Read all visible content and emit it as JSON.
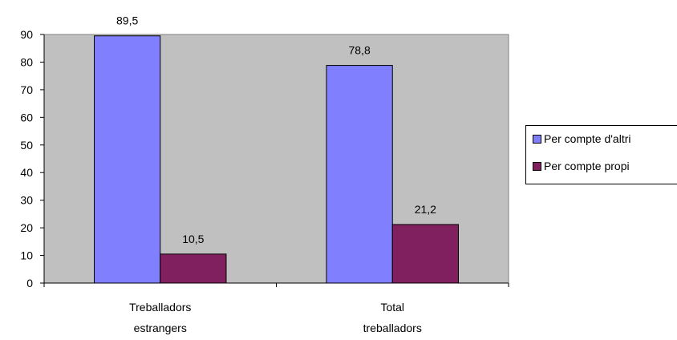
{
  "chart_data": {
    "type": "bar",
    "categories": [
      [
        "Treballadors",
        "estrangers"
      ],
      [
        "Total",
        "treballadors"
      ]
    ],
    "series": [
      {
        "name": "Per compte d'altri",
        "values": [
          89.5,
          78.8
        ],
        "labels": [
          "89,5",
          "78,8"
        ],
        "color": "#8080ff"
      },
      {
        "name": "Per compte propi",
        "values": [
          10.5,
          21.2
        ],
        "labels": [
          "10,5",
          "21,2"
        ],
        "color": "#80205f"
      }
    ],
    "ylim": [
      0,
      90
    ],
    "yticks": [
      "0",
      "10",
      "20",
      "30",
      "40",
      "50",
      "60",
      "70",
      "80",
      "90"
    ],
    "plot_background": "#c0c0c0",
    "grid": false,
    "legend_position": "right"
  }
}
